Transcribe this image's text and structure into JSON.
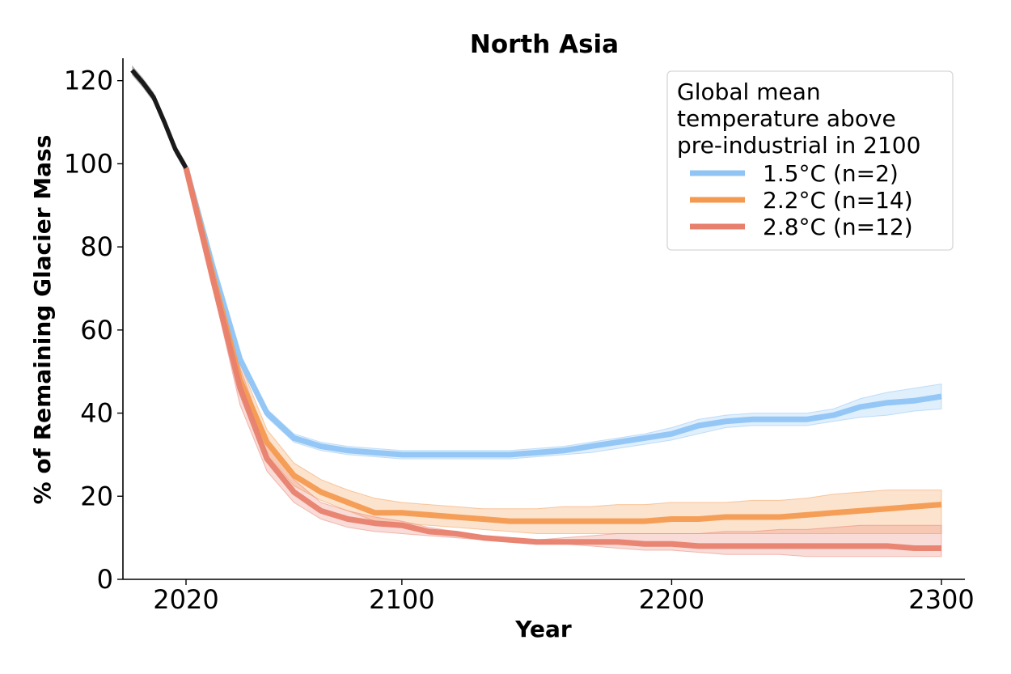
{
  "chart_data": {
    "type": "line",
    "title": "North Asia",
    "xlabel": "Year",
    "ylabel": "% of Remaining Glacier Mass",
    "xlim": [
      1998,
      2309
    ],
    "ylim": [
      0,
      125
    ],
    "x_ticks": [
      2020,
      2100,
      2200,
      2300
    ],
    "y_ticks": [
      0,
      20,
      40,
      60,
      80,
      100,
      120
    ],
    "grid": false,
    "legend": {
      "title": "Global mean\ntemperature above\npre-industrial in 2100",
      "placement": "top-right"
    },
    "historical": {
      "color": "#1a1a1a",
      "x": [
        2000,
        2004,
        2008,
        2012,
        2016,
        2020
      ],
      "y": [
        122.5,
        119.5,
        116,
        110,
        103.5,
        99
      ],
      "band": [
        1.2,
        1.2,
        1.2,
        1.2,
        1.2,
        1.2
      ]
    },
    "series": [
      {
        "name": "1.5°C (n=2)",
        "color": "#8fc4f5",
        "x": [
          2020,
          2030,
          2040,
          2050,
          2060,
          2070,
          2080,
          2090,
          2100,
          2110,
          2120,
          2130,
          2140,
          2150,
          2160,
          2170,
          2180,
          2190,
          2200,
          2210,
          2220,
          2230,
          2240,
          2250,
          2260,
          2270,
          2280,
          2290,
          2300
        ],
        "y": [
          99,
          75,
          53,
          40,
          34,
          32,
          31,
          30.5,
          30,
          30,
          30,
          30,
          30,
          30.5,
          31,
          32,
          33,
          34,
          35,
          37,
          38,
          38.5,
          38.5,
          38.5,
          39.5,
          41.5,
          42.5,
          43,
          44
        ],
        "lower": [
          99,
          74,
          52,
          39,
          33,
          31,
          30,
          29.5,
          29,
          29,
          29,
          29,
          29,
          29.5,
          30,
          30.5,
          31.5,
          32.5,
          33.5,
          35,
          36.5,
          37,
          37,
          37,
          38,
          39,
          39.5,
          40.5,
          41
        ],
        "upper": [
          99,
          76,
          54,
          41,
          35,
          33,
          32,
          31.5,
          31,
          31,
          31,
          31,
          31,
          31.5,
          32,
          33,
          34,
          35,
          36.5,
          38.5,
          39.5,
          40,
          40,
          40,
          41,
          43.5,
          45,
          46,
          47
        ]
      },
      {
        "name": "2.2°C (n=14)",
        "color": "#f49a50",
        "x": [
          2020,
          2030,
          2040,
          2050,
          2060,
          2070,
          2080,
          2090,
          2100,
          2110,
          2120,
          2130,
          2140,
          2150,
          2160,
          2170,
          2180,
          2190,
          2200,
          2210,
          2220,
          2230,
          2240,
          2250,
          2260,
          2270,
          2280,
          2290,
          2300
        ],
        "y": [
          99,
          73,
          48,
          33,
          25,
          21,
          18.5,
          16,
          16,
          15.5,
          15,
          14.5,
          14,
          14,
          14,
          14,
          14,
          14,
          14.5,
          14.5,
          15,
          15,
          15,
          15.5,
          16,
          16.5,
          17,
          17.5,
          18
        ],
        "lower": [
          99,
          71,
          45,
          30,
          22.5,
          19,
          16.5,
          14,
          13.5,
          13,
          12.5,
          12,
          11.5,
          11,
          11,
          11,
          11,
          11,
          11,
          11,
          11,
          11,
          11,
          11,
          11,
          11,
          11,
          11,
          11
        ],
        "upper": [
          99,
          75,
          52,
          36,
          28,
          24,
          21.5,
          19.5,
          18.5,
          18,
          17.5,
          17,
          17,
          17,
          17.5,
          17.5,
          18,
          18,
          18.5,
          18.5,
          18.5,
          19,
          19,
          19.5,
          20.5,
          21,
          21.5,
          21.5,
          21.5
        ]
      },
      {
        "name": "2.8°C (n=12)",
        "color": "#e8806e",
        "x": [
          2020,
          2030,
          2040,
          2050,
          2060,
          2070,
          2080,
          2090,
          2100,
          2110,
          2120,
          2130,
          2140,
          2150,
          2160,
          2170,
          2180,
          2190,
          2200,
          2210,
          2220,
          2230,
          2240,
          2250,
          2260,
          2270,
          2280,
          2290,
          2300
        ],
        "y": [
          99,
          72,
          46,
          29,
          21,
          16.5,
          14.5,
          13.5,
          13,
          11.5,
          11,
          10,
          9.5,
          9,
          9,
          9,
          9,
          8.5,
          8.5,
          8,
          8,
          8,
          8,
          8,
          8,
          8,
          8,
          7.5,
          7.5
        ],
        "lower": [
          99,
          70,
          42,
          26,
          18.5,
          14.5,
          12.5,
          11.5,
          11,
          10.5,
          10,
          9.5,
          9,
          8.5,
          8.5,
          8,
          7.5,
          7,
          7,
          6.5,
          6,
          6,
          6,
          5.5,
          5.5,
          5.5,
          5.5,
          5.5,
          5.5
        ],
        "upper": [
          99,
          75,
          51,
          33,
          24,
          18.5,
          16.5,
          15,
          14,
          12.5,
          11.5,
          10.5,
          10,
          9.5,
          10,
          10.5,
          11,
          11,
          11,
          11,
          11.5,
          11.5,
          12,
          12,
          12.5,
          13,
          13,
          13,
          13
        ]
      }
    ]
  }
}
